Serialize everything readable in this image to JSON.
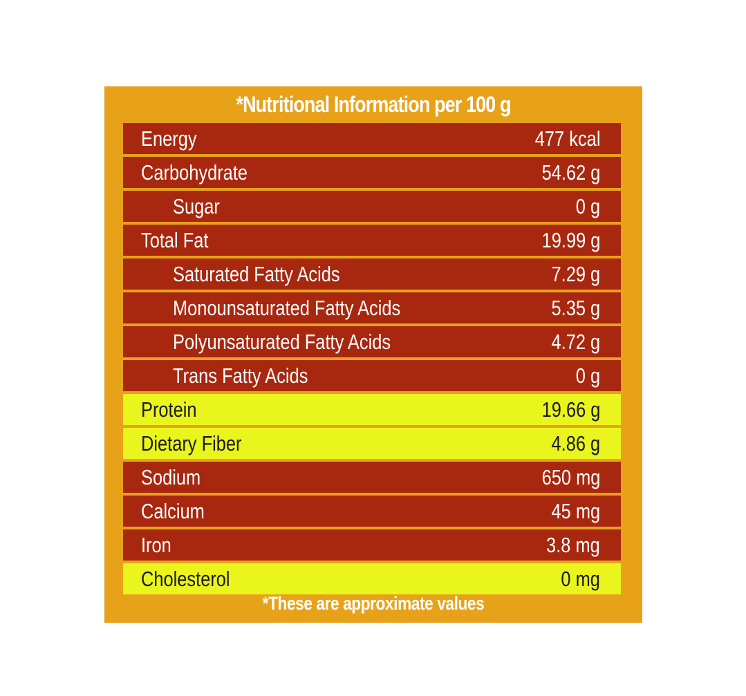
{
  "title": "*Nutritional Information per 100 g",
  "rows": [
    {
      "label": "Energy",
      "value": "477 kcal",
      "indent": false,
      "highlight": false
    },
    {
      "label": "Carbohydrate",
      "value": "54.62 g",
      "indent": false,
      "highlight": false
    },
    {
      "label": "Sugar",
      "value": "0 g",
      "indent": true,
      "highlight": false
    },
    {
      "label": "Total Fat",
      "value": "19.99 g",
      "indent": false,
      "highlight": false
    },
    {
      "label": "Saturated Fatty Acids",
      "value": "7.29 g",
      "indent": true,
      "highlight": false
    },
    {
      "label": "Monounsaturated Fatty Acids",
      "value": "5.35 g",
      "indent": true,
      "highlight": false
    },
    {
      "label": "Polyunsaturated Fatty Acids",
      "value": "4.72 g",
      "indent": true,
      "highlight": false
    },
    {
      "label": "Trans Fatty Acids",
      "value": "0 g",
      "indent": true,
      "highlight": false
    },
    {
      "label": "Protein",
      "value": "19.66 g",
      "indent": false,
      "highlight": true
    },
    {
      "label": "Dietary Fiber",
      "value": "4.86 g",
      "indent": false,
      "highlight": true
    },
    {
      "label": "Sodium",
      "value": "650 mg",
      "indent": false,
      "highlight": false
    },
    {
      "label": "Calcium",
      "value": "45 mg",
      "indent": false,
      "highlight": false
    },
    {
      "label": "Iron",
      "value": "3.8 mg",
      "indent": false,
      "highlight": false
    },
    {
      "label": "Cholesterol",
      "value": "0 mg",
      "indent": false,
      "highlight": true
    }
  ],
  "footnote": "*These are approximate values",
  "colors": {
    "panel_background": "#e8a21a",
    "row_background": "#a8270f",
    "highlight_background": "#e9f51c",
    "text_light": "#ffffff",
    "text_dark": "#1a1a1a"
  }
}
